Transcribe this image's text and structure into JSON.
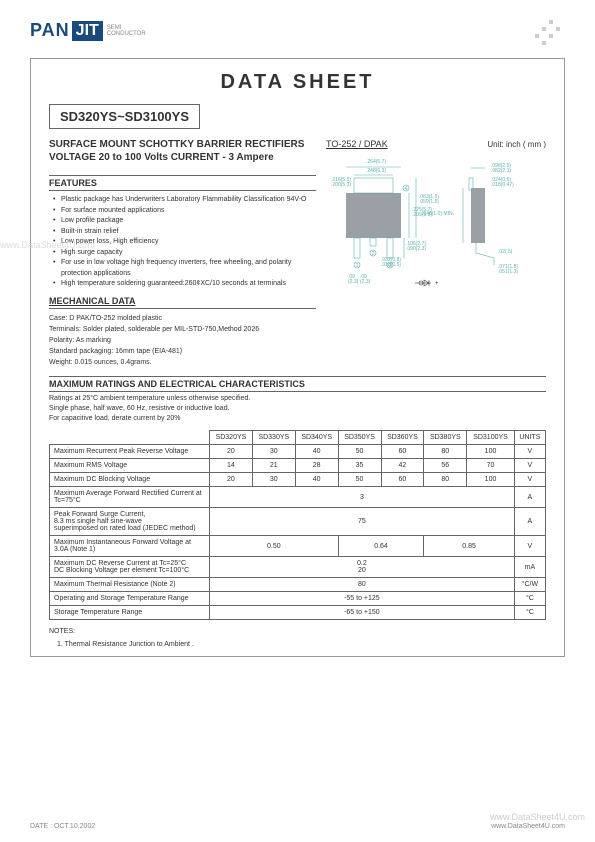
{
  "logo": {
    "pan": "PAN",
    "jit": "JIT",
    "sub1": "SEMI",
    "sub2": "CONDUCTOR"
  },
  "title": "DATA  SHEET",
  "part_range": "SD320YS~SD3100YS",
  "subtitle": "SURFACE MOUNT SCHOTTKY BARRIER RECTIFIERS",
  "voltage_line": "VOLTAGE 20 to 100 Volts    CURRENT - 3 Ampere",
  "package_label": "TO-252 / DPAK",
  "unit_label": "Unit: inch ( mm )",
  "package_diagram": {
    "body_color": "#9aa0a6",
    "line_color": "#5fb0b0",
    "text_color": "#5fb0b0",
    "dims": {
      "top_w": ".264(6.7)",
      "top_w2": ".248(6.3)",
      "tab_w": ".216(5.5)",
      "tab_w2": ".200(5.3)",
      "body_h": ".225(5.7)",
      "body_h2": ".209(5.3)",
      "total_h": ".083(1.6)",
      "total_h2": ".059(1.5)",
      "lead_h": ".106(2.7)",
      "lead_h2": ".090(2.3)",
      "lead_t": ".032(0.8)",
      "lead_t2": ".018(0.5)",
      "pitch": ".09",
      "pitch_mm": "(2.3)",
      "side_t": ".098(2.5)",
      "side_t2": ".082(2.1)",
      "side_b": ".024(0.6)",
      "side_b2": ".018(0.47)",
      "side_h": ".040(1.0) MIN.",
      "side_l1": ".02(.5)",
      "side_l2": ".071(1.8)",
      "side_l3": ".051(1.3)"
    }
  },
  "features": {
    "title": "FEATURES",
    "items": [
      "Plastic package has Underwriters Laboratory Flammability Classification 94V-O",
      "For surface mounted applications",
      "Low profile package",
      "Built-in strain relief",
      "Low power loss, High efficiency",
      "High surge capacity",
      "For use in low voltage high frequency inverters, free wheeling, and polarity protection applications",
      "High temperature soldering guaranteed:260¢XC/10 seconds at terminals"
    ]
  },
  "mechanical": {
    "title": "MECHANICAL DATA",
    "lines": [
      "Case: D PAK/TO-252 molded plastic",
      "Terminals: Solder plated, solderable per MIL-STD-750,Method 2026",
      "Polarity:  As marking",
      "Standard packaging: 16mm tape (EIA-481)",
      "Weight: 0.015 ounces, 0.4grams."
    ]
  },
  "max_ratings": {
    "title": "MAXIMUM RATINGS AND ELECTRICAL CHARACTERISTICS",
    "notes": [
      "Ratings at 25°C ambient temperature unless otherwise specified.",
      "Single phase, half wave, 60 Hz, resistive or inductive load.",
      "For capacitive load, derate current by 20%"
    ]
  },
  "table": {
    "headers": [
      "",
      "SD320YS",
      "SD330YS",
      "SD340YS",
      "SD350YS",
      "SD360YS",
      "SD380YS",
      "SD3100YS",
      "UNITS"
    ],
    "rows": [
      {
        "label": "Maximum Recurrent Peak Reverse Voltage",
        "vals": [
          "20",
          "30",
          "40",
          "50",
          "60",
          "80",
          "100"
        ],
        "unit": "V"
      },
      {
        "label": "Maximum RMS Voltage",
        "vals": [
          "14",
          "21",
          "28",
          "35",
          "42",
          "56",
          "70"
        ],
        "unit": "V"
      },
      {
        "label": "Maximum DC Blocking Voltage",
        "vals": [
          "20",
          "30",
          "40",
          "50",
          "60",
          "80",
          "100"
        ],
        "unit": "V"
      },
      {
        "label": "Maximum Average Forward Rectified Current at Tc=75°C",
        "span": "3",
        "unit": "A"
      },
      {
        "label": "Peak Forward Surge Current,\n8.3 ms single half sine-wave\nsuperimposed on rated load (JEDEC method)",
        "span": "75",
        "unit": "A"
      },
      {
        "label": "Maximum Instantaneous Forward Voltage at 3.0A (Note 1)",
        "groups": [
          {
            "v": "0.50",
            "c": 3
          },
          {
            "v": "0.64",
            "c": 2
          },
          {
            "v": "0.85",
            "c": 2
          }
        ],
        "unit": "V"
      },
      {
        "label": "Maximum DC Reverse Current at Tc=25°C\nDC Blocking Voltage per element  Tc=100°C",
        "span2": [
          "0.2",
          "20"
        ],
        "unit": "mA"
      },
      {
        "label": "Maximum Thermal Resistance (Note 2)",
        "span": "80",
        "unit": "°C/W"
      },
      {
        "label": "Operating and Storage Temperature Range",
        "span": "-55 to +125",
        "unit": "°C"
      },
      {
        "label": "Storage Temperature Range",
        "span": "-65 to +150",
        "unit": "°C"
      }
    ]
  },
  "notes_section": {
    "title": "NOTES:",
    "items": [
      "1. Thermal Resistance Junction to Ambient ."
    ]
  },
  "footer": {
    "date": "DATE : OCT.10.2002",
    "url": "www.DataSheet4U.com"
  },
  "watermarks": {
    "left": "www.DataSheet4U.com",
    "right": "www.DataSheet4U.com"
  }
}
